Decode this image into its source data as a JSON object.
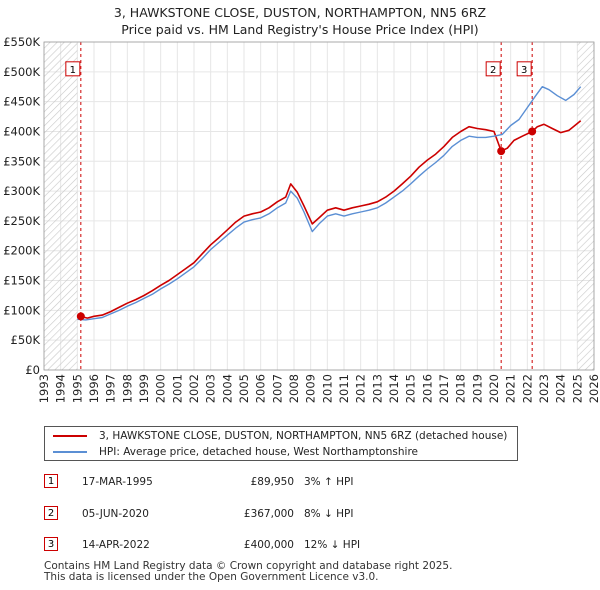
{
  "title": {
    "line1": "3, HAWKSTONE CLOSE, DUSTON, NORTHAMPTON, NN5 6RZ",
    "line2": "Price paid vs. HM Land Registry's House Price Index (HPI)"
  },
  "colors": {
    "property": "#cc0000",
    "hpi": "#5b8fd4",
    "marker_line": "#cc0000",
    "hatch": "#cccccc",
    "grid": "#e6e6e6"
  },
  "chart_data": {
    "type": "line",
    "xlim": [
      1993,
      2026
    ],
    "ylim": [
      0,
      550000
    ],
    "yticks": [
      {
        "value": 0,
        "label": "£0"
      },
      {
        "value": 50000,
        "label": "£50K"
      },
      {
        "value": 100000,
        "label": "£100K"
      },
      {
        "value": 150000,
        "label": "£150K"
      },
      {
        "value": 200000,
        "label": "£200K"
      },
      {
        "value": 250000,
        "label": "£250K"
      },
      {
        "value": 300000,
        "label": "£300K"
      },
      {
        "value": 350000,
        "label": "£350K"
      },
      {
        "value": 400000,
        "label": "£400K"
      },
      {
        "value": 450000,
        "label": "£450K"
      },
      {
        "value": 500000,
        "label": "£500K"
      },
      {
        "value": 550000,
        "label": "£550K"
      }
    ],
    "xticks": [
      "1993",
      "1994",
      "1995",
      "1996",
      "1997",
      "1998",
      "1999",
      "2000",
      "2001",
      "2002",
      "2003",
      "2004",
      "2005",
      "2006",
      "2007",
      "2008",
      "2009",
      "2010",
      "2011",
      "2012",
      "2013",
      "2014",
      "2015",
      "2016",
      "2017",
      "2018",
      "2019",
      "2020",
      "2021",
      "2022",
      "2023",
      "2024",
      "2025",
      "2026"
    ],
    "hatched_regions": [
      [
        1993,
        1995.0
      ],
      [
        2025.0,
        2026
      ]
    ],
    "series": [
      {
        "name": "3, HAWKSTONE CLOSE, DUSTON, NORTHAMPTON, NN5 6RZ (detached house)",
        "color_key": "property",
        "points": [
          [
            1995.21,
            89950
          ],
          [
            1995.6,
            87000
          ],
          [
            1996,
            90000
          ],
          [
            1996.5,
            92000
          ],
          [
            1997,
            98000
          ],
          [
            1997.5,
            105000
          ],
          [
            1998,
            112000
          ],
          [
            1998.5,
            118000
          ],
          [
            1999,
            125000
          ],
          [
            1999.5,
            133000
          ],
          [
            2000,
            142000
          ],
          [
            2000.5,
            150000
          ],
          [
            2001,
            160000
          ],
          [
            2001.5,
            170000
          ],
          [
            2002,
            180000
          ],
          [
            2002.5,
            195000
          ],
          [
            2003,
            210000
          ],
          [
            2003.5,
            222000
          ],
          [
            2004,
            235000
          ],
          [
            2004.5,
            248000
          ],
          [
            2005,
            258000
          ],
          [
            2005.5,
            262000
          ],
          [
            2006,
            265000
          ],
          [
            2006.5,
            272000
          ],
          [
            2007,
            282000
          ],
          [
            2007.5,
            290000
          ],
          [
            2007.8,
            312000
          ],
          [
            2008.2,
            298000
          ],
          [
            2008.6,
            275000
          ],
          [
            2009.1,
            245000
          ],
          [
            2009.5,
            255000
          ],
          [
            2010,
            268000
          ],
          [
            2010.5,
            272000
          ],
          [
            2011,
            268000
          ],
          [
            2011.5,
            272000
          ],
          [
            2012,
            275000
          ],
          [
            2012.5,
            278000
          ],
          [
            2013,
            282000
          ],
          [
            2013.5,
            290000
          ],
          [
            2014,
            300000
          ],
          [
            2014.5,
            312000
          ],
          [
            2015,
            325000
          ],
          [
            2015.5,
            340000
          ],
          [
            2016,
            352000
          ],
          [
            2016.5,
            362000
          ],
          [
            2017,
            375000
          ],
          [
            2017.5,
            390000
          ],
          [
            2018,
            400000
          ],
          [
            2018.5,
            408000
          ],
          [
            2019,
            405000
          ],
          [
            2019.5,
            403000
          ],
          [
            2020,
            400000
          ],
          [
            2020.43,
            367000
          ],
          [
            2020.8,
            372000
          ],
          [
            2021.2,
            385000
          ],
          [
            2021.7,
            392000
          ],
          [
            2022.29,
            400000
          ],
          [
            2022.6,
            408000
          ],
          [
            2023,
            412000
          ],
          [
            2023.5,
            405000
          ],
          [
            2024,
            398000
          ],
          [
            2024.5,
            402000
          ],
          [
            2025.2,
            418000
          ]
        ]
      },
      {
        "name": "HPI: Average price, detached house, West Northamptonshire",
        "color_key": "hpi",
        "points": [
          [
            1995,
            85000
          ],
          [
            1995.5,
            84000
          ],
          [
            1996,
            86000
          ],
          [
            1996.5,
            88000
          ],
          [
            1997,
            94000
          ],
          [
            1997.5,
            100000
          ],
          [
            1998,
            107000
          ],
          [
            1998.5,
            113000
          ],
          [
            1999,
            120000
          ],
          [
            1999.5,
            127000
          ],
          [
            2000,
            136000
          ],
          [
            2000.5,
            144000
          ],
          [
            2001,
            153000
          ],
          [
            2001.5,
            163000
          ],
          [
            2002,
            173000
          ],
          [
            2002.5,
            187000
          ],
          [
            2003,
            202000
          ],
          [
            2003.5,
            214000
          ],
          [
            2004,
            226000
          ],
          [
            2004.5,
            238000
          ],
          [
            2005,
            248000
          ],
          [
            2005.5,
            252000
          ],
          [
            2006,
            255000
          ],
          [
            2006.5,
            262000
          ],
          [
            2007,
            272000
          ],
          [
            2007.5,
            280000
          ],
          [
            2007.8,
            300000
          ],
          [
            2008.2,
            288000
          ],
          [
            2008.6,
            265000
          ],
          [
            2009.1,
            232000
          ],
          [
            2009.5,
            245000
          ],
          [
            2010,
            258000
          ],
          [
            2010.5,
            262000
          ],
          [
            2011,
            258000
          ],
          [
            2011.5,
            262000
          ],
          [
            2012,
            265000
          ],
          [
            2012.5,
            268000
          ],
          [
            2013,
            272000
          ],
          [
            2013.5,
            280000
          ],
          [
            2014,
            290000
          ],
          [
            2014.5,
            300000
          ],
          [
            2015,
            312000
          ],
          [
            2015.5,
            325000
          ],
          [
            2016,
            337000
          ],
          [
            2016.5,
            348000
          ],
          [
            2017,
            360000
          ],
          [
            2017.5,
            375000
          ],
          [
            2018,
            385000
          ],
          [
            2018.5,
            392000
          ],
          [
            2019,
            390000
          ],
          [
            2019.5,
            390000
          ],
          [
            2020,
            392000
          ],
          [
            2020.5,
            395000
          ],
          [
            2021,
            410000
          ],
          [
            2021.5,
            420000
          ],
          [
            2022,
            440000
          ],
          [
            2022.5,
            460000
          ],
          [
            2022.9,
            475000
          ],
          [
            2023.3,
            470000
          ],
          [
            2023.8,
            460000
          ],
          [
            2024.3,
            452000
          ],
          [
            2024.8,
            462000
          ],
          [
            2025.2,
            475000
          ]
        ]
      }
    ],
    "sales": [
      {
        "id": "1",
        "x": 1995.21,
        "price": 89950,
        "label_y": 500000
      },
      {
        "id": "2",
        "x": 2020.43,
        "price": 367000,
        "label_y": 500000
      },
      {
        "id": "3",
        "x": 2022.29,
        "price": 400000,
        "label_y": 500000
      }
    ]
  },
  "legend": {
    "property_label": "3, HAWKSTONE CLOSE, DUSTON, NORTHAMPTON, NN5 6RZ (detached house)",
    "hpi_label": "HPI: Average price, detached house, West Northamptonshire"
  },
  "sales_table": [
    {
      "id": "1",
      "date": "17-MAR-1995",
      "price": "£89,950",
      "hpi": "3% ↑ HPI"
    },
    {
      "id": "2",
      "date": "05-JUN-2020",
      "price": "£367,000",
      "hpi": "8% ↓ HPI"
    },
    {
      "id": "3",
      "date": "14-APR-2022",
      "price": "£400,000",
      "hpi": "12% ↓ HPI"
    }
  ],
  "footer": {
    "line1": "Contains HM Land Registry data © Crown copyright and database right 2025.",
    "line2": "This data is licensed under the Open Government Licence v3.0."
  }
}
